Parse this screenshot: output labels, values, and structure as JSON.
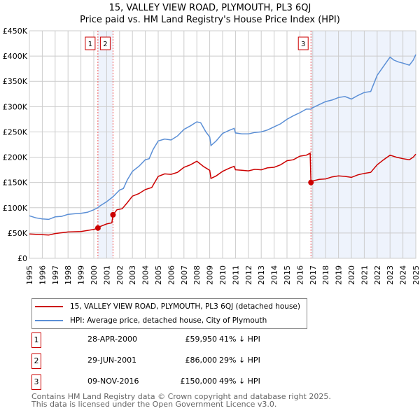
{
  "chart_data": {
    "type": "line",
    "title": "15, VALLEY VIEW ROAD, PLYMOUTH, PL3 6QJ",
    "subtitle": "Price paid vs. HM Land Registry's House Price Index (HPI)",
    "xlim": [
      1995,
      2025
    ],
    "ylim": [
      0,
      450000
    ],
    "x_ticks": [
      "1995",
      "1996",
      "1997",
      "1998",
      "1999",
      "2000",
      "2001",
      "2002",
      "2003",
      "2004",
      "2005",
      "2006",
      "2007",
      "2008",
      "2009",
      "2010",
      "2011",
      "2012",
      "2013",
      "2014",
      "2015",
      "2016",
      "2017",
      "2018",
      "2019",
      "2020",
      "2021",
      "2022",
      "2023",
      "2024",
      "2025"
    ],
    "y_ticks": [
      {
        "v": 0,
        "label": "£0"
      },
      {
        "v": 50000,
        "label": "£50K"
      },
      {
        "v": 100000,
        "label": "£100K"
      },
      {
        "v": 150000,
        "label": "£150K"
      },
      {
        "v": 200000,
        "label": "£200K"
      },
      {
        "v": 250000,
        "label": "£250K"
      },
      {
        "v": 300000,
        "label": "£300K"
      },
      {
        "v": 350000,
        "label": "£350K"
      },
      {
        "v": 400000,
        "label": "£400K"
      },
      {
        "v": 450000,
        "label": "£450K"
      }
    ],
    "grid": true,
    "series": [
      {
        "name": "15, VALLEY VIEW ROAD, PLYMOUTH, PL3 6QJ (detached house)",
        "color": "#cc0000",
        "x": [
          1995,
          1996.5,
          1997,
          1998,
          1999,
          2000,
          2000.32,
          2000.5,
          2001,
          2001.4,
          2001.49,
          2001.8,
          2002.2,
          2002.6,
          2003,
          2003.5,
          2004,
          2004.5,
          2005,
          2005.5,
          2006,
          2006.5,
          2007,
          2007.5,
          2008,
          2008.5,
          2009,
          2009.1,
          2009.5,
          2010,
          2010.5,
          2010.9,
          2011,
          2011.5,
          2012,
          2012.5,
          2013,
          2013.5,
          2014,
          2014.5,
          2015,
          2015.5,
          2016,
          2016.5,
          2016.8,
          2016.86,
          2017,
          2017.5,
          2018,
          2018.5,
          2019,
          2019.5,
          2020,
          2020.5,
          2021,
          2021.5,
          2022,
          2022.5,
          2023,
          2023.5,
          2024,
          2024.5,
          2024.8,
          2025
        ],
        "y": [
          48,
          46,
          49,
          52,
          53,
          57,
          59.95,
          63,
          68,
          70,
          86,
          96,
          98,
          110,
          123,
          128,
          136,
          140,
          162,
          167,
          166,
          170,
          180,
          185,
          192,
          182,
          174,
          158,
          163,
          172,
          178,
          182,
          175,
          174,
          173,
          176,
          175,
          179,
          180,
          185,
          193,
          195,
          202,
          204,
          208,
          150,
          153,
          156,
          157,
          161,
          163,
          162,
          160,
          165,
          168,
          170,
          185,
          195,
          204,
          200,
          197,
          195,
          200,
          206
        ]
      },
      {
        "name": "HPI: Average price, detached house, City of Plymouth",
        "color": "#5b8fd6",
        "x": [
          1995,
          1995.5,
          1996,
          1996.5,
          1997,
          1997.5,
          1998,
          1998.5,
          1999,
          1999.5,
          2000,
          2000.3,
          2000.5,
          2001,
          2001.5,
          2002,
          2002.3,
          2002.6,
          2003,
          2003.5,
          2004,
          2004.3,
          2004.6,
          2005,
          2005.5,
          2006,
          2006.5,
          2007,
          2007.5,
          2008,
          2008.3,
          2008.7,
          2009,
          2009.1,
          2009.5,
          2010,
          2010.5,
          2010.9,
          2011,
          2011.5,
          2012,
          2012.5,
          2013,
          2013.5,
          2014,
          2014.5,
          2015,
          2015.5,
          2016,
          2016.5,
          2016.85,
          2017,
          2017.5,
          2018,
          2018.5,
          2019,
          2019.5,
          2020,
          2020.5,
          2021,
          2021.5,
          2022,
          2022.5,
          2023,
          2023.3,
          2023.7,
          2024,
          2024.5,
          2024.8,
          2025
        ],
        "y": [
          84,
          80,
          78,
          77,
          82,
          83,
          87,
          88,
          89,
          91,
          96,
          100,
          104,
          112,
          122,
          135,
          138,
          155,
          172,
          182,
          195,
          197,
          215,
          232,
          236,
          234,
          242,
          255,
          262,
          270,
          268,
          250,
          240,
          223,
          232,
          247,
          253,
          257,
          248,
          246,
          246,
          249,
          250,
          254,
          260,
          266,
          275,
          282,
          288,
          295,
          295,
          298,
          304,
          310,
          313,
          318,
          320,
          315,
          322,
          328,
          330,
          362,
          380,
          398,
          392,
          388,
          386,
          382,
          392,
          403
        ]
      }
    ],
    "y_unit_multiplier": 1000,
    "shaded_ranges": [
      [
        2000.32,
        2001.49
      ],
      [
        2016.86,
        2025
      ]
    ],
    "annotations": [
      {
        "label": "1",
        "x": 2000.32,
        "y": 59950
      },
      {
        "label": "2",
        "x": 2001.49,
        "y": 86000
      },
      {
        "label": "3",
        "x": 2016.86,
        "y": 150000
      }
    ],
    "legend_position": "below"
  },
  "table": [
    {
      "num": "1",
      "date": "28-APR-2000",
      "price": "£59,950",
      "hpi": "41% ↓ HPI"
    },
    {
      "num": "2",
      "date": "29-JUN-2001",
      "price": "£86,000",
      "hpi": "29% ↓ HPI"
    },
    {
      "num": "3",
      "date": "09-NOV-2016",
      "price": "£150,000",
      "hpi": "49% ↓ HPI"
    }
  ],
  "footer": [
    "Contains HM Land Registry data © Crown copyright and database right 2025.",
    "This data is licensed under the Open Government Licence v3.0."
  ]
}
